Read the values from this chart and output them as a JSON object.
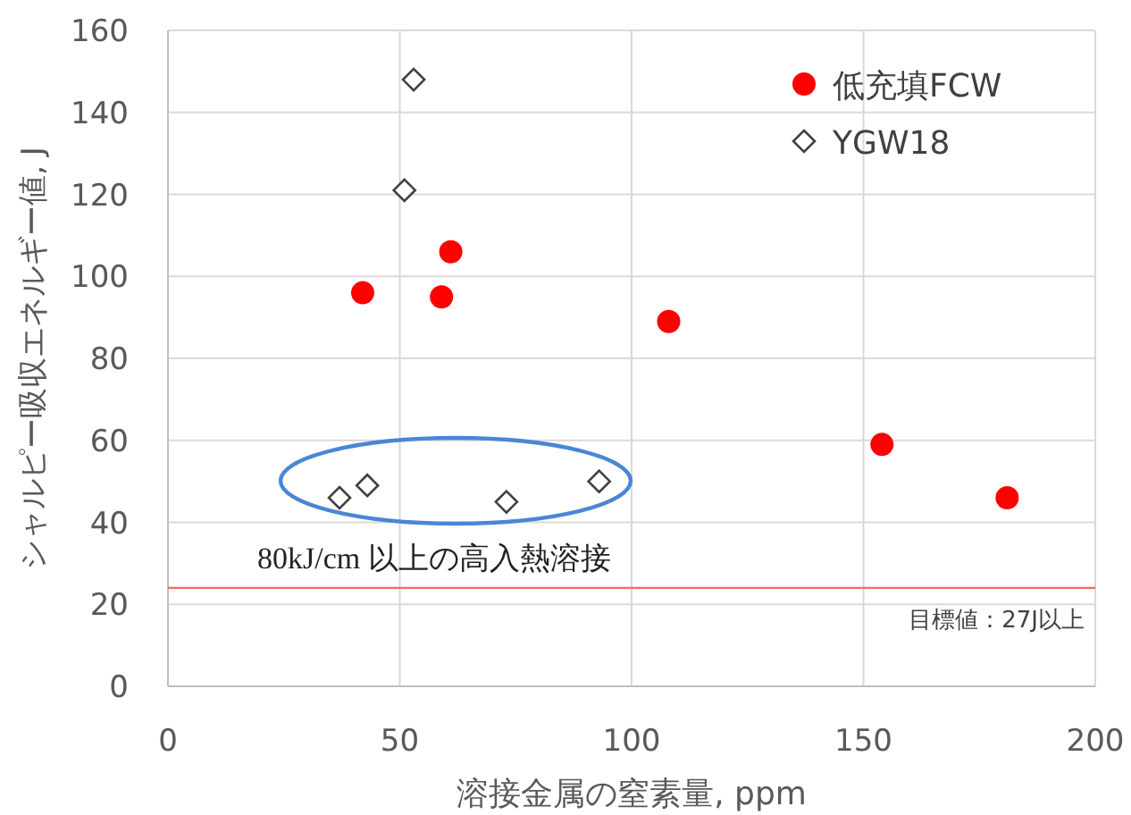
{
  "chart_data": {
    "type": "scatter",
    "xlabel": "溶接金属の窒素量, ppm",
    "ylabel": "シャルピー吸収エネルギー値, J",
    "xlim": [
      0,
      200
    ],
    "xticks": [
      0,
      50,
      100,
      150,
      200
    ],
    "ylim": [
      0,
      160
    ],
    "yticks": [
      0,
      20,
      40,
      60,
      80,
      100,
      120,
      140,
      160
    ],
    "grid": true,
    "legend": "top right",
    "series": [
      {
        "name": "低充填FCW",
        "color": "#ff0000",
        "marker": "circle",
        "x": [
          42,
          59,
          61,
          108,
          154,
          181
        ],
        "values": [
          96,
          95,
          106,
          89,
          59,
          46
        ]
      },
      {
        "name": "YGW18",
        "color": "#404040",
        "marker": "diamond",
        "x": [
          37,
          43,
          51,
          53,
          73,
          93
        ],
        "values": [
          46,
          49,
          121,
          148,
          45,
          50
        ]
      }
    ],
    "ref_lines": [
      {
        "axis": "y",
        "value": 24,
        "label": "目標値：27J以上",
        "color": "#ff6666"
      }
    ],
    "annotations": [
      "80kJ/cm 以上の高入熱溶接"
    ]
  }
}
